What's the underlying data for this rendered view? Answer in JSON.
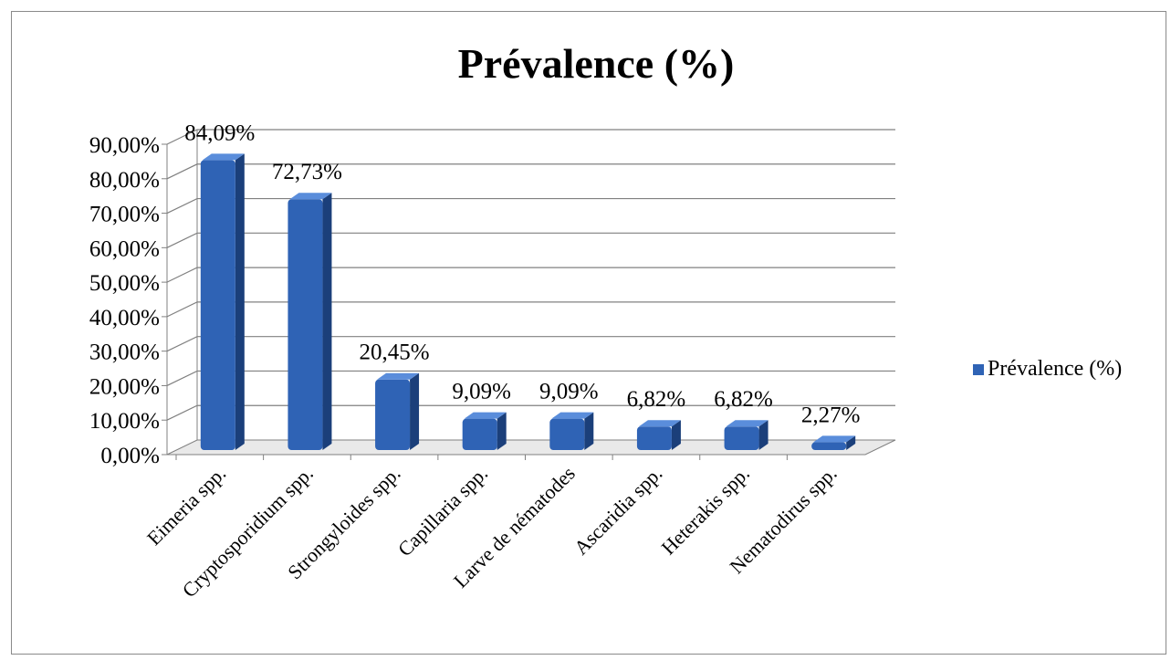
{
  "chart_data": {
    "type": "bar",
    "title": "Prévalence (%)",
    "categories": [
      "Eimeria spp.",
      "Cryptosporidium spp.",
      "Strongyloides spp.",
      "Capillaria spp.",
      "Larve de nématodes",
      "Ascaridia spp.",
      "Heterakis spp.",
      "Nematodirus spp."
    ],
    "series": [
      {
        "name": "Prévalence (%)",
        "values": [
          84.09,
          72.73,
          20.45,
          9.09,
          9.09,
          6.82,
          6.82,
          2.27
        ]
      }
    ],
    "data_labels": [
      "84,09%",
      "72,73%",
      "20,45%",
      "9,09%",
      "9,09%",
      "6,82%",
      "6,82%",
      "2,27%"
    ],
    "yticks": [
      "0,00%",
      "10,00%",
      "20,00%",
      "30,00%",
      "40,00%",
      "50,00%",
      "60,00%",
      "70,00%",
      "80,00%",
      "90,00%"
    ],
    "ylim": [
      0,
      90
    ],
    "xlabel": "",
    "ylabel": "",
    "grid": true,
    "legend_position": "right",
    "style": "3d-column",
    "colors": {
      "bar": "#2f63b5",
      "bar_side": "#1b3f7a",
      "bar_top": "#5a8ddb",
      "grid": "#808080"
    }
  }
}
